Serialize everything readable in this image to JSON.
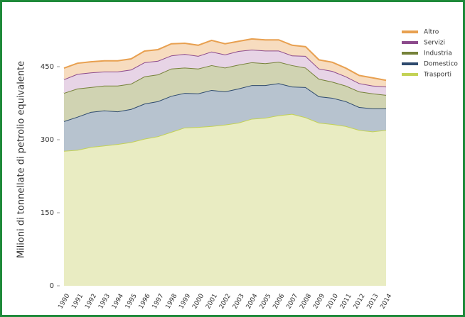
{
  "chart_data": {
    "type": "stacked_area",
    "y_label": "Milioni di tonnellate di petrolio equivalente",
    "categories": [
      "1990",
      "1991",
      "1992",
      "1993",
      "1994",
      "1995",
      "1996",
      "1997",
      "1998",
      "1999",
      "2000",
      "2001",
      "2002",
      "2003",
      "2004",
      "2005",
      "2006",
      "2007",
      "2008",
      "2009",
      "2010",
      "2011",
      "2012",
      "2013",
      "2014"
    ],
    "series": [
      {
        "name": "Trasporti",
        "color": "#c3d255",
        "fill": "#e9ecc2",
        "values": [
          277,
          279,
          285,
          288,
          291,
          295,
          302,
          307,
          316,
          325,
          326,
          328,
          331,
          335,
          343,
          345,
          350,
          353,
          346,
          335,
          332,
          328,
          320,
          317,
          320
        ]
      },
      {
        "name": "Domestico",
        "color": "#2e4a6e",
        "fill": "#b7c3cf",
        "values": [
          61,
          68,
          72,
          72,
          67,
          68,
          72,
          72,
          74,
          71,
          69,
          74,
          68,
          70,
          69,
          67,
          66,
          56,
          62,
          54,
          54,
          51,
          47,
          47,
          44
        ]
      },
      {
        "name": "Industria",
        "color": "#76823a",
        "fill": "#d0d3b2",
        "values": [
          58,
          58,
          51,
          51,
          53,
          52,
          56,
          55,
          56,
          52,
          51,
          51,
          49,
          49,
          47,
          45,
          44,
          44,
          40,
          36,
          33,
          32,
          32,
          31,
          28
        ]
      },
      {
        "name": "Servizi",
        "color": "#8c4a8c",
        "fill": "#e7d4e6",
        "values": [
          28,
          30,
          30,
          29,
          29,
          29,
          29,
          28,
          27,
          28,
          26,
          28,
          27,
          28,
          26,
          26,
          23,
          20,
          24,
          21,
          22,
          19,
          17,
          16,
          17
        ]
      },
      {
        "name": "Altro",
        "color": "#e8a050",
        "fill": "#f7dcbf",
        "values": [
          23,
          22,
          22,
          22,
          22,
          22,
          23,
          23,
          24,
          22,
          22,
          23,
          22,
          20,
          22,
          22,
          22,
          21,
          19,
          18,
          18,
          17,
          16,
          16,
          13
        ]
      }
    ],
    "ylim": [
      0,
      520
    ],
    "yticks": [
      0,
      150,
      300,
      450
    ],
    "legend": "top-right"
  }
}
